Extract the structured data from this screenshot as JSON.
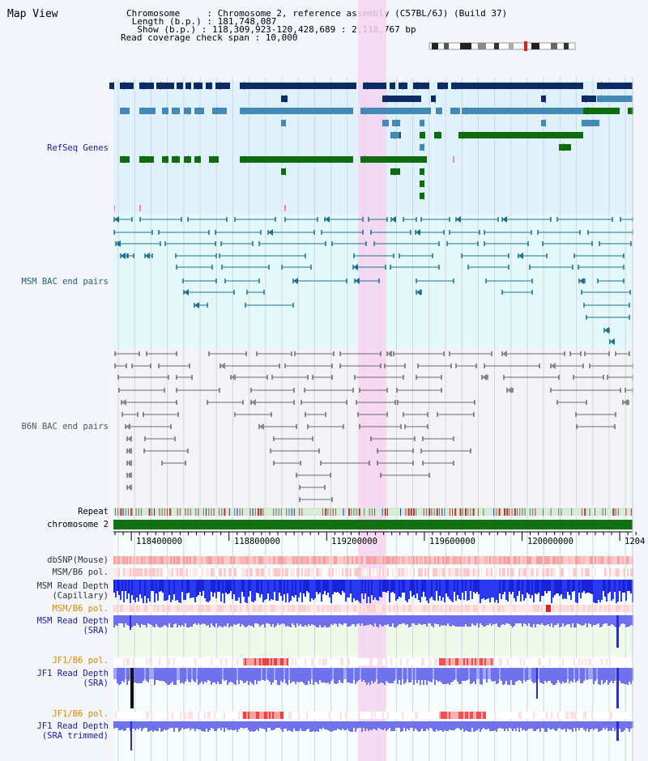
{
  "title": "Map View",
  "info": {
    "chromosome": "Chromosome     : Chromosome 2, reference assembly (C57BL/6J) (Build 37)",
    "length": " Length (b.p.) : 181,748,087",
    "show": "  Show (b.p.) : 118,309,923-120,428,689 : 2,118,767 bp",
    "coverage": "Read coverage check span : 10,000"
  },
  "tracks": {
    "refseq": "RefSeq Genes",
    "msm_bac": "MSM BAC end pairs",
    "b6n_bac": "B6N BAC end pairs",
    "repeat": "Repeat",
    "chromosome": "chromosome 2",
    "dbsnp": "dbSNP(Mouse)",
    "msm_b6_pol_1": "MSM/B6 pol.",
    "msm_depth_cap_1": "MSM Read Depth",
    "msm_depth_cap_2": "(Capillary)",
    "msm_b6_pol_2": "MSM/B6 pol.",
    "msm_depth_sra_1": "MSM Read Depth",
    "msm_depth_sra_2": "(SRA)",
    "jf1_pol_1": "JF1/B6 pol.",
    "jf1_depth_1": "JF1 Read Depth",
    "jf1_depth_2": "(SRA)",
    "jf1_pol_2": "JF1/B6 pol.",
    "jf1_trim_1": "JF1 Read Depth",
    "jf1_trim_2": "(SRA trimmed)"
  },
  "axis_ticks": [
    "118400000",
    "118800000",
    "119200000",
    "119600000",
    "120000000",
    "1204"
  ],
  "colors": {
    "refseq_dark": "#0c2a63",
    "refseq_mid": "#4489b5",
    "refseq_green": "#0e6b0e",
    "msm_line": "#1d6f8e",
    "b6n_line": "#6b6b6b",
    "highlight": "#f6d4f0",
    "depth_blue": "#1a2ae0",
    "depth_light": "#7c7cf0",
    "orange_label": "#d98a00",
    "navy_label": "#1a1ab0"
  }
}
